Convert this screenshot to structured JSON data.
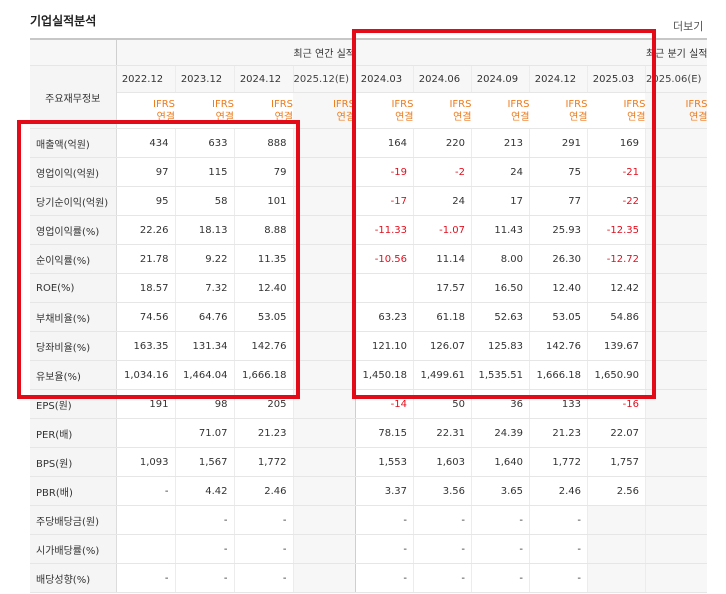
{
  "section_title": "기업실적분석",
  "more_label": "더보기",
  "header": {
    "label_col": "주요재무정보",
    "group_annual": "최근 연간 실적",
    "group_quarter": "최근 분기 실적",
    "ifrs_line1": "IFRS",
    "ifrs_line2": "연결",
    "annual_periods": [
      "2022.12",
      "2023.12",
      "2024.12",
      "2025.12(E)"
    ],
    "quarter_periods": [
      "2024.03",
      "2024.06",
      "2024.09",
      "2024.12",
      "2025.03",
      "2025.06(E)"
    ]
  },
  "rows": [
    {
      "label": "매출액(억원)",
      "annual": [
        "434",
        "633",
        "888",
        ""
      ],
      "quarter": [
        "164",
        "220",
        "213",
        "291",
        "169",
        ""
      ]
    },
    {
      "label": "영업이익(억원)",
      "annual": [
        "97",
        "115",
        "79",
        ""
      ],
      "quarter": [
        "-19",
        "-2",
        "24",
        "75",
        "-21",
        ""
      ]
    },
    {
      "label": "당기순이익(억원)",
      "annual": [
        "95",
        "58",
        "101",
        ""
      ],
      "quarter": [
        "-17",
        "24",
        "17",
        "77",
        "-22",
        ""
      ]
    },
    {
      "label": "영업이익률(%)",
      "annual": [
        "22.26",
        "18.13",
        "8.88",
        ""
      ],
      "quarter": [
        "-11.33",
        "-1.07",
        "11.43",
        "25.93",
        "-12.35",
        ""
      ]
    },
    {
      "label": "순이익률(%)",
      "annual": [
        "21.78",
        "9.22",
        "11.35",
        ""
      ],
      "quarter": [
        "-10.56",
        "11.14",
        "8.00",
        "26.30",
        "-12.72",
        ""
      ]
    },
    {
      "label": "ROE(%)",
      "annual": [
        "18.57",
        "7.32",
        "12.40",
        ""
      ],
      "quarter": [
        "",
        "17.57",
        "16.50",
        "12.40",
        "12.42",
        ""
      ]
    },
    {
      "label": "부채비율(%)",
      "annual": [
        "74.56",
        "64.76",
        "53.05",
        ""
      ],
      "quarter": [
        "63.23",
        "61.18",
        "52.63",
        "53.05",
        "54.86",
        ""
      ]
    },
    {
      "label": "당좌비율(%)",
      "annual": [
        "163.35",
        "131.34",
        "142.76",
        ""
      ],
      "quarter": [
        "121.10",
        "126.07",
        "125.83",
        "142.76",
        "139.67",
        ""
      ]
    },
    {
      "label": "유보율(%)",
      "annual": [
        "1,034.16",
        "1,464.04",
        "1,666.18",
        ""
      ],
      "quarter": [
        "1,450.18",
        "1,499.61",
        "1,535.51",
        "1,666.18",
        "1,650.90",
        ""
      ]
    },
    {
      "label": "EPS(원)",
      "annual": [
        "191",
        "98",
        "205",
        ""
      ],
      "quarter": [
        "-14",
        "50",
        "36",
        "133",
        "-16",
        ""
      ]
    },
    {
      "label": "PER(배)",
      "annual": [
        "",
        "71.07",
        "21.23",
        ""
      ],
      "quarter": [
        "78.15",
        "22.31",
        "24.39",
        "21.23",
        "22.07",
        ""
      ]
    },
    {
      "label": "BPS(원)",
      "annual": [
        "1,093",
        "1,567",
        "1,772",
        ""
      ],
      "quarter": [
        "1,553",
        "1,603",
        "1,640",
        "1,772",
        "1,757",
        ""
      ]
    },
    {
      "label": "PBR(배)",
      "annual": [
        "-",
        "4.42",
        "2.46",
        ""
      ],
      "quarter": [
        "3.37",
        "3.56",
        "3.65",
        "2.46",
        "2.56",
        ""
      ]
    },
    {
      "label": "주당배당금(원)",
      "annual": [
        "",
        "-",
        "-",
        ""
      ],
      "quarter": [
        "-",
        "-",
        "-",
        "-",
        "",
        ""
      ]
    },
    {
      "label": "시가배당률(%)",
      "annual": [
        "",
        "-",
        "-",
        ""
      ],
      "quarter": [
        "-",
        "-",
        "-",
        "-",
        "",
        ""
      ]
    },
    {
      "label": "배당성향(%)",
      "annual": [
        "-",
        "-",
        "-",
        ""
      ],
      "quarter": [
        "-",
        "-",
        "-",
        "-",
        "",
        ""
      ]
    }
  ],
  "colors": {
    "negative": "#e0101e",
    "ifrs": "#ee7a1a",
    "highlight_box": "#e30b18"
  }
}
